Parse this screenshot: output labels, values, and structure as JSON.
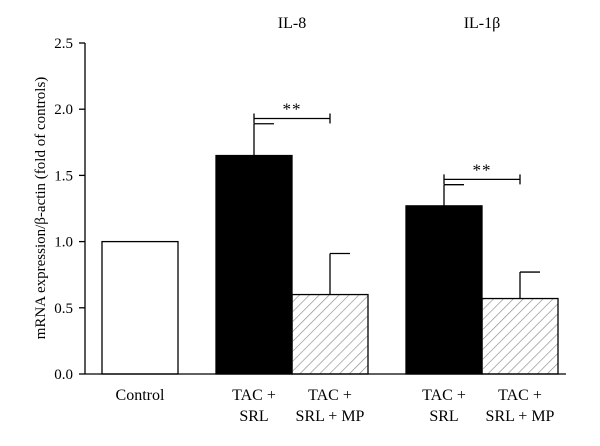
{
  "chart_data": {
    "type": "bar",
    "title": "",
    "xlabel": "",
    "ylabel": "mRNA expression/β-actin (fold of controls)",
    "ylim": [
      0,
      2.5
    ],
    "yticks": [
      "0.0",
      "0.5",
      "1.0",
      "1.5",
      "2.0",
      "2.5"
    ],
    "grid": false,
    "legend": "none",
    "groups": [
      {
        "label": "IL-8",
        "bars": [
          1,
          2
        ]
      },
      {
        "label": "IL-1β",
        "bars": [
          3,
          4
        ]
      }
    ],
    "bars": [
      {
        "category": "Control",
        "category_line2": "",
        "value": 1.0,
        "error": null,
        "fill": "white"
      },
      {
        "category": "TAC +",
        "category_line2": "SRL",
        "value": 1.65,
        "error": 0.24,
        "fill": "black"
      },
      {
        "category": "TAC +",
        "category_line2": "SRL + MP",
        "value": 0.6,
        "error": 0.31,
        "fill": "hatched"
      },
      {
        "category": "TAC +",
        "category_line2": "SRL",
        "value": 1.27,
        "error": 0.16,
        "fill": "black"
      },
      {
        "category": "TAC +",
        "category_line2": "SRL + MP",
        "value": 0.57,
        "error": 0.2,
        "fill": "hatched"
      }
    ],
    "annotations": [
      {
        "text": "**",
        "from_bar": 1,
        "to_bar": 2,
        "y": 1.93
      },
      {
        "text": "**",
        "from_bar": 3,
        "to_bar": 4,
        "y": 1.47
      }
    ]
  },
  "colors": {
    "bar_solid": "#000000",
    "bar_open": "#ffffff",
    "hatch": "#8a8a8a",
    "axis": "#000000"
  }
}
